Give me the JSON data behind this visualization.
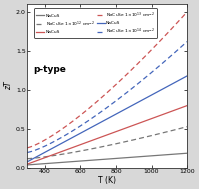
{
  "title": "p-type",
  "xlabel": "T (K)",
  "ylabel": "zT",
  "xlim": [
    300,
    1200
  ],
  "ylim": [
    0.0,
    2.1
  ],
  "xticks": [
    400,
    600,
    800,
    1000,
    1200
  ],
  "yticks": [
    0.0,
    0.5,
    1.0,
    1.5,
    2.0
  ],
  "T_range": [
    300,
    1200
  ],
  "lines": [
    {
      "color": "#777777",
      "solid_zT_at_300": 0.04,
      "solid_zT_at_1200": 0.19,
      "dashed_zT_at_300": 0.12,
      "dashed_zT_at_1200": 0.53
    },
    {
      "color": "#cc5555",
      "solid_zT_at_300": 0.05,
      "solid_zT_at_1200": 0.8,
      "dashed_zT_at_300": 0.26,
      "dashed_zT_at_1200": 2.0
    },
    {
      "color": "#4466bb",
      "solid_zT_at_300": 0.08,
      "solid_zT_at_1200": 1.18,
      "dashed_zT_at_300": 0.2,
      "dashed_zT_at_1200": 1.62
    }
  ],
  "legend_exponents": [
    "12",
    "13",
    "14"
  ],
  "figure_bgcolor": "#d8d8d8",
  "plot_bgcolor": "#ffffff",
  "solid_power": 1.0,
  "dashed_power": 1.3
}
